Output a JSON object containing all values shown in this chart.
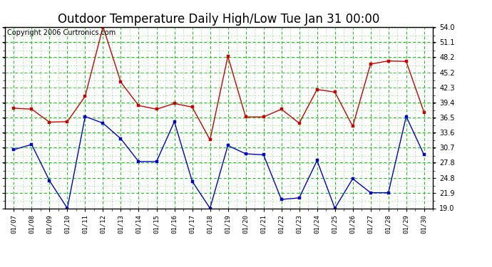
{
  "title": "Outdoor Temperature Daily High/Low Tue Jan 31 00:00",
  "copyright": "Copyright 2006 Curtronics.com",
  "x_labels": [
    "01/07",
    "01/08",
    "01/09",
    "01/10",
    "01/11",
    "01/12",
    "01/13",
    "01/14",
    "01/15",
    "01/16",
    "01/17",
    "01/18",
    "01/19",
    "01/20",
    "01/21",
    "01/22",
    "01/23",
    "01/24",
    "01/25",
    "01/26",
    "01/27",
    "01/28",
    "01/29",
    "01/30"
  ],
  "high_values": [
    38.3,
    38.1,
    35.6,
    35.7,
    40.6,
    54.0,
    43.3,
    38.8,
    38.1,
    39.2,
    38.5,
    32.2,
    48.3,
    36.6,
    36.6,
    38.1,
    35.4,
    41.9,
    41.4,
    34.8,
    46.8,
    47.4,
    47.3,
    37.5
  ],
  "low_values": [
    30.3,
    31.3,
    24.3,
    19.0,
    36.7,
    35.4,
    32.4,
    28.0,
    28.0,
    35.7,
    24.2,
    19.0,
    31.1,
    29.5,
    29.3,
    20.7,
    21.0,
    28.2,
    19.0,
    24.7,
    22.0,
    22.0,
    36.7,
    29.3
  ],
  "y_min": 19.0,
  "y_max": 54.0,
  "y_ticks": [
    19.0,
    21.9,
    24.8,
    27.8,
    30.7,
    33.6,
    36.5,
    39.4,
    42.3,
    45.2,
    48.2,
    51.1,
    54.0
  ],
  "high_color": "#cc0000",
  "low_color": "#0000cc",
  "bg_color": "#ffffff",
  "plot_bg_color": "#ffffff",
  "grid_color_major": "#00cc00",
  "grid_color_minor": "#99dd99",
  "title_fontsize": 12,
  "copyright_fontsize": 7
}
